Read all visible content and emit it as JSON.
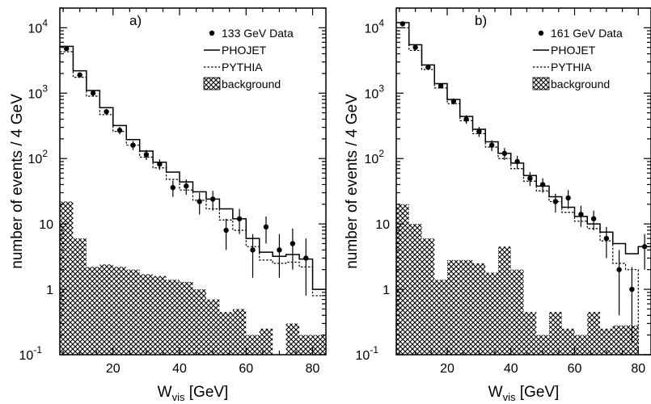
{
  "chart_data": [
    {
      "type": "line",
      "panel_label": "a)",
      "xlabel_main": "W",
      "xlabel_sub": "vis",
      "xlabel_unit": "[GeV]",
      "ylabel": "number of events / 4 GeV",
      "xlim": [
        4,
        84
      ],
      "ylim": [
        0.1,
        20000
      ],
      "y_scale": "log",
      "x_ticks": [
        20,
        40,
        60,
        80
      ],
      "bin_edges": [
        4,
        8,
        12,
        16,
        20,
        24,
        28,
        32,
        36,
        40,
        44,
        48,
        52,
        56,
        60,
        64,
        68,
        72,
        76,
        80,
        84
      ],
      "legend_position": "top-right",
      "colors": {
        "data": "#000000",
        "phojet": "#000000",
        "pythia": "#000000",
        "background": "#000000"
      },
      "series": [
        {
          "name": "133 GeV Data",
          "kind": "points",
          "x": [
            6,
            10,
            14,
            18,
            22,
            26,
            30,
            34,
            38,
            42,
            46,
            50,
            54,
            58,
            62,
            66,
            70,
            74,
            78
          ],
          "y": [
            4800,
            1900,
            1000,
            520,
            270,
            160,
            115,
            82,
            36,
            38,
            22,
            24,
            8,
            12,
            4,
            9,
            4,
            5,
            3
          ],
          "err_up": [
            400,
            150,
            80,
            50,
            35,
            25,
            20,
            15,
            10,
            10,
            8,
            8,
            4,
            5,
            3,
            4,
            3,
            3.5,
            3
          ],
          "err_down": [
            400,
            150,
            80,
            50,
            35,
            25,
            20,
            15,
            10,
            10,
            8,
            8,
            4,
            5,
            2.5,
            4,
            2.5,
            3,
            2.2
          ]
        },
        {
          "name": "PHOJET",
          "kind": "step-solid",
          "values": [
            5200,
            2200,
            1100,
            600,
            320,
            195,
            130,
            88,
            62,
            44,
            31,
            24,
            17,
            12,
            6,
            3.7,
            3.2,
            3.4,
            2.9,
            1.0
          ]
        },
        {
          "name": "PYTHIA",
          "kind": "step-dashed",
          "values": [
            4300,
            1750,
            900,
            470,
            260,
            160,
            105,
            72,
            48,
            33,
            23,
            17,
            11.5,
            8,
            4.5,
            2.8,
            2.5,
            2.6,
            2.2,
            0.8
          ]
        },
        {
          "name": "background",
          "kind": "hatched-histogram",
          "values": [
            22,
            6,
            2.2,
            2.4,
            2.2,
            2.0,
            1.7,
            1.6,
            1.4,
            1.3,
            1.0,
            0.7,
            0.45,
            0.5,
            0.2,
            0.25,
            0.1,
            0.3,
            0.2,
            0.2
          ]
        }
      ]
    },
    {
      "type": "line",
      "panel_label": "b)",
      "xlabel_main": "W",
      "xlabel_sub": "vis",
      "xlabel_unit": "[GeV]",
      "ylabel": "number of events / 4 GeV",
      "xlim": [
        4,
        84
      ],
      "ylim": [
        0.1,
        20000
      ],
      "y_scale": "log",
      "x_ticks": [
        20,
        40,
        60,
        80
      ],
      "bin_edges": [
        4,
        8,
        12,
        16,
        20,
        24,
        28,
        32,
        36,
        40,
        44,
        48,
        52,
        56,
        60,
        64,
        68,
        72,
        76,
        80,
        84
      ],
      "legend_position": "top-right",
      "colors": {
        "data": "#000000",
        "phojet": "#000000",
        "pythia": "#000000",
        "background": "#000000"
      },
      "series": [
        {
          "name": "161 GeV Data",
          "kind": "points",
          "x": [
            6,
            10,
            14,
            18,
            22,
            26,
            30,
            34,
            38,
            42,
            46,
            50,
            54,
            58,
            62,
            66,
            70,
            74,
            78,
            82
          ],
          "y": [
            11500,
            5000,
            2500,
            1300,
            750,
            400,
            260,
            160,
            120,
            90,
            50,
            40,
            22,
            25,
            14,
            12,
            6,
            2,
            1,
            4.5
          ],
          "err_up": [
            600,
            300,
            180,
            120,
            80,
            60,
            45,
            30,
            25,
            20,
            12,
            10,
            7,
            8,
            5,
            4,
            3,
            2,
            1.2,
            2.5
          ],
          "err_down": [
            600,
            300,
            180,
            120,
            80,
            60,
            45,
            30,
            25,
            20,
            12,
            10,
            7,
            8,
            5,
            4,
            3,
            1.6,
            0.85,
            2.5
          ]
        },
        {
          "name": "PHOJET",
          "kind": "step-solid",
          "values": [
            12000,
            5500,
            2700,
            1400,
            800,
            440,
            280,
            180,
            120,
            85,
            55,
            38,
            26,
            18,
            13,
            10,
            7.5,
            5,
            3.5,
            4.5
          ]
        },
        {
          "name": "PYTHIA",
          "kind": "step-dashed",
          "values": [
            10000,
            4500,
            2300,
            1200,
            690,
            380,
            240,
            150,
            100,
            70,
            45,
            32,
            22,
            15,
            11,
            8.5,
            5.5,
            2.5,
            2.0,
            0.1
          ]
        },
        {
          "name": "background",
          "kind": "hatched-histogram",
          "values": [
            20,
            10,
            6,
            1.4,
            2.8,
            2.8,
            2.5,
            1.8,
            4.5,
            2.0,
            0.45,
            0.2,
            0.45,
            0.25,
            0.2,
            0.45,
            0.25,
            0.28,
            0.28,
            0.1
          ]
        }
      ]
    }
  ]
}
